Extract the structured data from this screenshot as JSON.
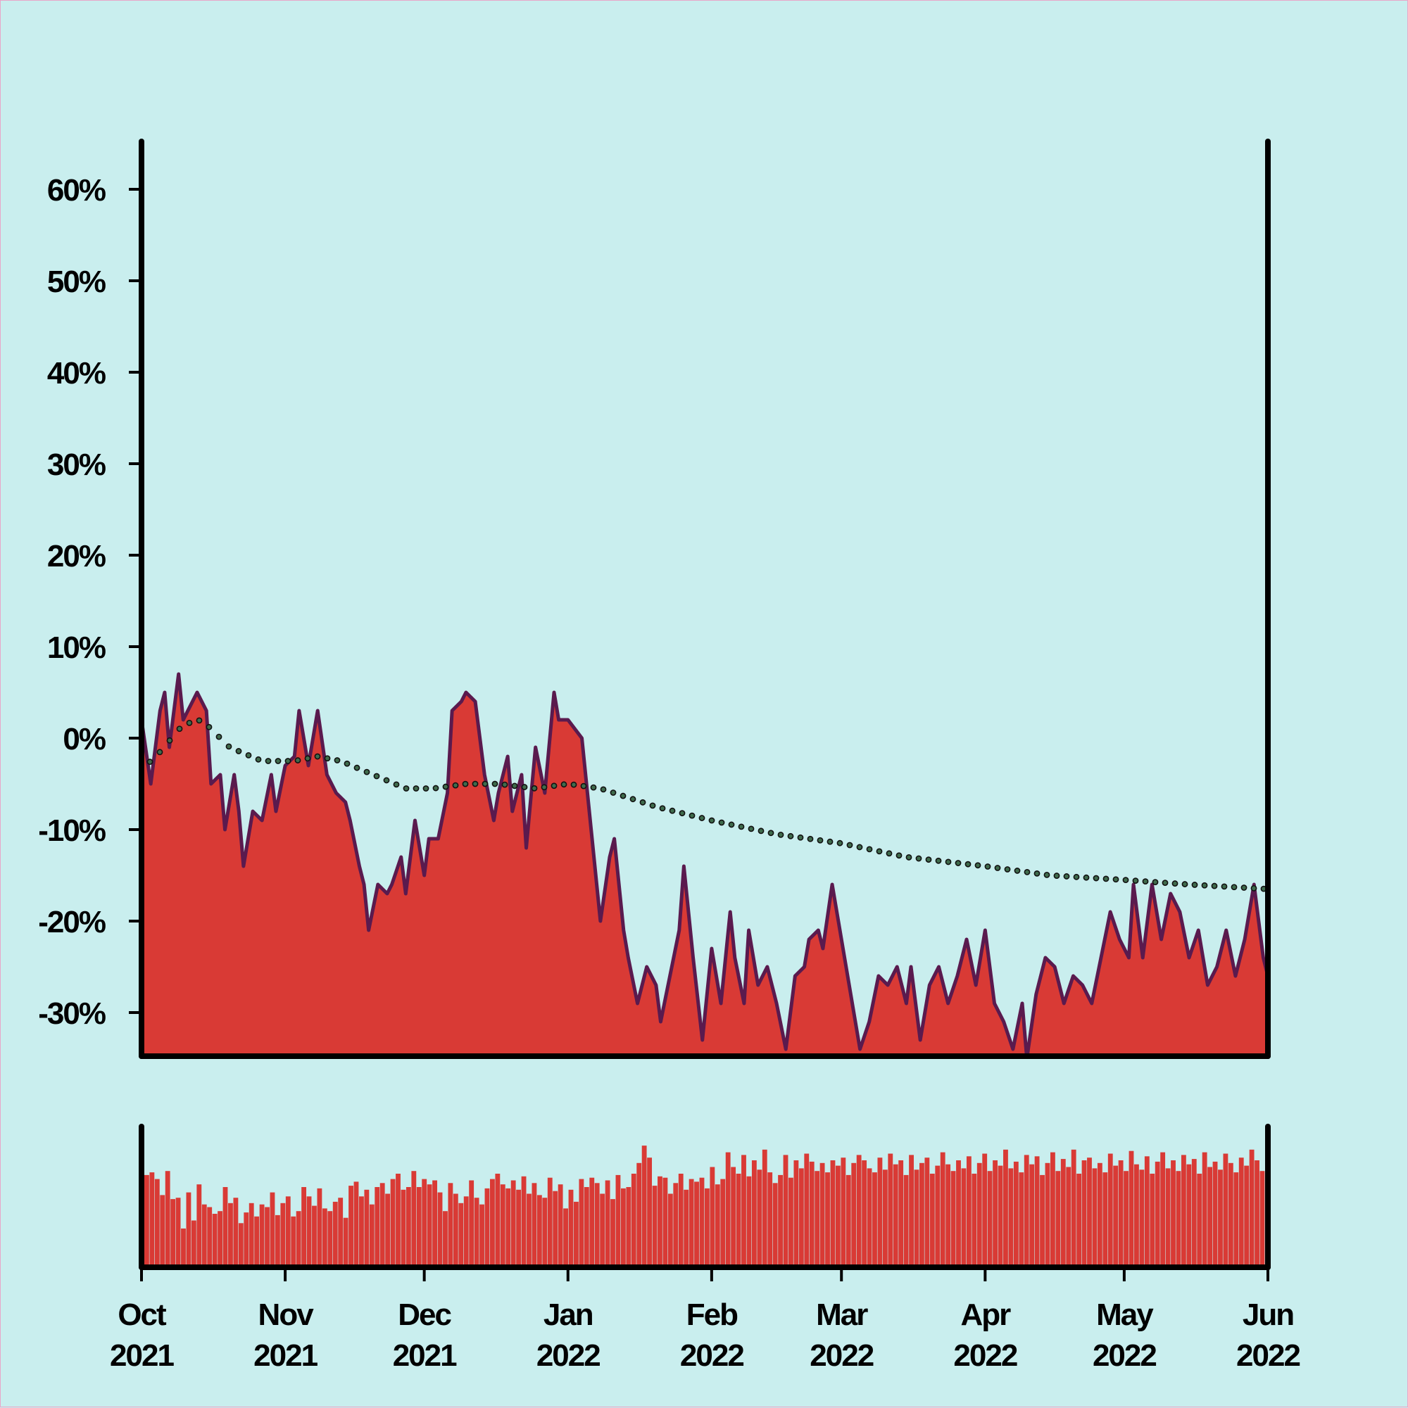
{
  "chart_data": [
    {
      "type": "area",
      "title": "",
      "xlabel": "",
      "ylabel": "",
      "ylim": [
        -34,
        66
      ],
      "y_ticks": [
        "60%",
        "50%",
        "40%",
        "30%",
        "20%",
        "10%",
        "0%",
        "-10%",
        "-20%",
        "-30%"
      ],
      "y_tick_values": [
        60,
        50,
        40,
        30,
        20,
        10,
        0,
        -10,
        -20,
        -30
      ],
      "x_range": [
        "2021-10-01",
        "2022-06-01"
      ],
      "x_ticks": [
        {
          "date": "2021-10-01",
          "month": "Oct",
          "year": "2021"
        },
        {
          "date": "2021-11-01",
          "month": "Nov",
          "year": "2021"
        },
        {
          "date": "2021-12-01",
          "month": "Dec",
          "year": "2021"
        },
        {
          "date": "2022-01-01",
          "month": "Jan",
          "year": "2022"
        },
        {
          "date": "2022-02-01",
          "month": "Feb",
          "year": "2022"
        },
        {
          "date": "2022-03-01",
          "month": "Mar",
          "year": "2022"
        },
        {
          "date": "2022-04-01",
          "month": "Apr",
          "year": "2022"
        },
        {
          "date": "2022-05-01",
          "month": "May",
          "year": "2022"
        },
        {
          "date": "2022-06-01",
          "month": "Jun",
          "year": "2022"
        }
      ],
      "series": [
        {
          "role": "area-line",
          "color": "#d93a35",
          "line_color": "#5a1a4e",
          "points": [
            [
              "2021-10-01",
              2
            ],
            [
              "2021-10-03",
              -5
            ],
            [
              "2021-10-05",
              3
            ],
            [
              "2021-10-06",
              5
            ],
            [
              "2021-10-07",
              -1
            ],
            [
              "2021-10-09",
              7
            ],
            [
              "2021-10-10",
              2
            ],
            [
              "2021-10-12",
              4
            ],
            [
              "2021-10-13",
              5
            ],
            [
              "2021-10-15",
              3
            ],
            [
              "2021-10-16",
              -5
            ],
            [
              "2021-10-18",
              -4
            ],
            [
              "2021-10-19",
              -10
            ],
            [
              "2021-10-21",
              -4
            ],
            [
              "2021-10-22",
              -8
            ],
            [
              "2021-10-23",
              -14
            ],
            [
              "2021-10-25",
              -8
            ],
            [
              "2021-10-27",
              -9
            ],
            [
              "2021-10-29",
              -4
            ],
            [
              "2021-10-30",
              -8
            ],
            [
              "2021-11-01",
              -3
            ],
            [
              "2021-11-03",
              -2
            ],
            [
              "2021-11-04",
              3
            ],
            [
              "2021-11-06",
              -3
            ],
            [
              "2021-11-07",
              0
            ],
            [
              "2021-11-08",
              3
            ],
            [
              "2021-11-10",
              -4
            ],
            [
              "2021-11-12",
              -6
            ],
            [
              "2021-11-14",
              -7
            ],
            [
              "2021-11-15",
              -9
            ],
            [
              "2021-11-17",
              -14
            ],
            [
              "2021-11-18",
              -16
            ],
            [
              "2021-11-19",
              -21
            ],
            [
              "2021-11-21",
              -16
            ],
            [
              "2021-11-23",
              -17
            ],
            [
              "2021-11-24",
              -16
            ],
            [
              "2021-11-26",
              -13
            ],
            [
              "2021-11-27",
              -17
            ],
            [
              "2021-11-29",
              -9
            ],
            [
              "2021-12-01",
              -15
            ],
            [
              "2021-12-02",
              -11
            ],
            [
              "2021-12-04",
              -11
            ],
            [
              "2021-12-06",
              -6
            ],
            [
              "2021-12-07",
              3
            ],
            [
              "2021-12-09",
              4
            ],
            [
              "2021-12-10",
              5
            ],
            [
              "2021-12-12",
              4
            ],
            [
              "2021-12-14",
              -4
            ],
            [
              "2021-12-16",
              -9
            ],
            [
              "2021-12-17",
              -6
            ],
            [
              "2021-12-19",
              -2
            ],
            [
              "2021-12-20",
              -8
            ],
            [
              "2021-12-22",
              -4
            ],
            [
              "2021-12-23",
              -12
            ],
            [
              "2021-12-25",
              -1
            ],
            [
              "2021-12-27",
              -6
            ],
            [
              "2021-12-29",
              5
            ],
            [
              "2021-12-30",
              2
            ],
            [
              "2022-01-01",
              2
            ],
            [
              "2022-01-04",
              0
            ],
            [
              "2022-01-06",
              -10
            ],
            [
              "2022-01-08",
              -20
            ],
            [
              "2022-01-10",
              -13
            ],
            [
              "2022-01-11",
              -11
            ],
            [
              "2022-01-13",
              -21
            ],
            [
              "2022-01-14",
              -24
            ],
            [
              "2022-01-16",
              -29
            ],
            [
              "2022-01-18",
              -25
            ],
            [
              "2022-01-20",
              -27
            ],
            [
              "2022-01-21",
              -31
            ],
            [
              "2022-01-23",
              -26
            ],
            [
              "2022-01-25",
              -21
            ],
            [
              "2022-01-26",
              -14
            ],
            [
              "2022-01-28",
              -24
            ],
            [
              "2022-01-30",
              -33
            ],
            [
              "2022-02-01",
              -23
            ],
            [
              "2022-02-03",
              -29
            ],
            [
              "2022-02-05",
              -19
            ],
            [
              "2022-02-06",
              -24
            ],
            [
              "2022-02-08",
              -29
            ],
            [
              "2022-02-09",
              -21
            ],
            [
              "2022-02-11",
              -27
            ],
            [
              "2022-02-13",
              -25
            ],
            [
              "2022-02-15",
              -29
            ],
            [
              "2022-02-17",
              -34
            ],
            [
              "2022-02-19",
              -26
            ],
            [
              "2022-02-21",
              -25
            ],
            [
              "2022-02-22",
              -22
            ],
            [
              "2022-02-24",
              -21
            ],
            [
              "2022-02-25",
              -23
            ],
            [
              "2022-02-27",
              -16
            ],
            [
              "2022-03-01",
              -22
            ],
            [
              "2022-03-03",
              -28
            ],
            [
              "2022-03-05",
              -34
            ],
            [
              "2022-03-07",
              -31
            ],
            [
              "2022-03-09",
              -26
            ],
            [
              "2022-03-11",
              -27
            ],
            [
              "2022-03-13",
              -25
            ],
            [
              "2022-03-15",
              -29
            ],
            [
              "2022-03-16",
              -25
            ],
            [
              "2022-03-18",
              -33
            ],
            [
              "2022-03-20",
              -27
            ],
            [
              "2022-03-22",
              -25
            ],
            [
              "2022-03-24",
              -29
            ],
            [
              "2022-03-26",
              -26
            ],
            [
              "2022-03-28",
              -22
            ],
            [
              "2022-03-30",
              -27
            ],
            [
              "2022-04-01",
              -21
            ],
            [
              "2022-04-03",
              -29
            ],
            [
              "2022-04-05",
              -31
            ],
            [
              "2022-04-07",
              -34
            ],
            [
              "2022-04-09",
              -29
            ],
            [
              "2022-04-10",
              -35
            ],
            [
              "2022-04-12",
              -28
            ],
            [
              "2022-04-14",
              -24
            ],
            [
              "2022-04-16",
              -25
            ],
            [
              "2022-04-18",
              -29
            ],
            [
              "2022-04-20",
              -26
            ],
            [
              "2022-04-22",
              -27
            ],
            [
              "2022-04-24",
              -29
            ],
            [
              "2022-04-26",
              -24
            ],
            [
              "2022-04-28",
              -19
            ],
            [
              "2022-04-30",
              -22
            ],
            [
              "2022-05-02",
              -24
            ],
            [
              "2022-05-03",
              -16
            ],
            [
              "2022-05-05",
              -24
            ],
            [
              "2022-05-07",
              -16
            ],
            [
              "2022-05-09",
              -22
            ],
            [
              "2022-05-11",
              -17
            ],
            [
              "2022-05-13",
              -19
            ],
            [
              "2022-05-15",
              -24
            ],
            [
              "2022-05-17",
              -21
            ],
            [
              "2022-05-19",
              -27
            ],
            [
              "2022-05-21",
              -25
            ],
            [
              "2022-05-23",
              -21
            ],
            [
              "2022-05-25",
              -26
            ],
            [
              "2022-05-27",
              -22
            ],
            [
              "2022-05-29",
              -16
            ],
            [
              "2022-05-31",
              -24
            ],
            [
              "2022-06-01",
              -26
            ]
          ]
        },
        {
          "role": "trend",
          "style": "dotted",
          "color": "#3f6b4c",
          "points": [
            [
              "2021-10-01",
              -3.5
            ],
            [
              "2021-10-05",
              -1.5
            ],
            [
              "2021-10-10",
              1.5
            ],
            [
              "2021-10-14",
              2
            ],
            [
              "2021-10-20",
              -1
            ],
            [
              "2021-10-27",
              -2.5
            ],
            [
              "2021-11-03",
              -2.5
            ],
            [
              "2021-11-08",
              -2
            ],
            [
              "2021-11-13",
              -2.5
            ],
            [
              "2021-11-20",
              -4
            ],
            [
              "2021-11-27",
              -5.5
            ],
            [
              "2021-12-03",
              -5.5
            ],
            [
              "2021-12-10",
              -5
            ],
            [
              "2021-12-17",
              -5
            ],
            [
              "2021-12-25",
              -5.5
            ],
            [
              "2022-01-01",
              -5
            ],
            [
              "2022-01-08",
              -5.5
            ],
            [
              "2022-01-20",
              -7.5
            ],
            [
              "2022-02-01",
              -9
            ],
            [
              "2022-02-15",
              -10.5
            ],
            [
              "2022-03-01",
              -11.5
            ],
            [
              "2022-03-15",
              -13
            ],
            [
              "2022-04-01",
              -14
            ],
            [
              "2022-04-15",
              -15
            ],
            [
              "2022-05-01",
              -15.5
            ],
            [
              "2022-05-15",
              -16
            ],
            [
              "2022-06-01",
              -16.5
            ]
          ]
        }
      ]
    },
    {
      "type": "bar",
      "title": "",
      "description_color": "#d93a35",
      "x_range": [
        "2021-10-01",
        "2022-06-01"
      ],
      "ylim": [
        0,
        1
      ],
      "values": [
        0.69,
        0.71,
        0.66,
        0.54,
        0.72,
        0.51,
        0.52,
        0.29,
        0.56,
        0.35,
        0.62,
        0.47,
        0.45,
        0.4,
        0.42,
        0.6,
        0.48,
        0.52,
        0.33,
        0.41,
        0.48,
        0.38,
        0.47,
        0.45,
        0.56,
        0.39,
        0.48,
        0.53,
        0.38,
        0.42,
        0.6,
        0.53,
        0.46,
        0.59,
        0.44,
        0.42,
        0.49,
        0.52,
        0.37,
        0.61,
        0.64,
        0.53,
        0.58,
        0.47,
        0.6,
        0.63,
        0.55,
        0.66,
        0.7,
        0.58,
        0.6,
        0.72,
        0.6,
        0.66,
        0.62,
        0.65,
        0.56,
        0.42,
        0.63,
        0.55,
        0.48,
        0.53,
        0.65,
        0.52,
        0.47,
        0.59,
        0.66,
        0.7,
        0.62,
        0.59,
        0.65,
        0.58,
        0.68,
        0.55,
        0.63,
        0.54,
        0.52,
        0.67,
        0.57,
        0.62,
        0.44,
        0.58,
        0.49,
        0.66,
        0.6,
        0.67,
        0.63,
        0.55,
        0.65,
        0.51,
        0.69,
        0.59,
        0.6,
        0.7,
        0.78,
        0.91,
        0.82,
        0.61,
        0.68,
        0.67,
        0.55,
        0.63,
        0.7,
        0.58,
        0.66,
        0.64,
        0.67,
        0.59,
        0.75,
        0.62,
        0.66,
        0.86,
        0.75,
        0.7,
        0.84,
        0.68,
        0.8,
        0.73,
        0.88,
        0.71,
        0.63,
        0.69,
        0.84,
        0.67,
        0.8,
        0.74,
        0.85,
        0.79,
        0.72,
        0.78,
        0.71,
        0.8,
        0.76,
        0.82,
        0.69,
        0.78,
        0.84,
        0.8,
        0.74,
        0.71,
        0.82,
        0.73,
        0.85,
        0.77,
        0.8,
        0.69,
        0.84,
        0.73,
        0.78,
        0.82,
        0.7,
        0.76,
        0.86,
        0.77,
        0.72,
        0.8,
        0.74,
        0.83,
        0.7,
        0.78,
        0.85,
        0.72,
        0.8,
        0.76,
        0.88,
        0.74,
        0.79,
        0.71,
        0.84,
        0.77,
        0.83,
        0.69,
        0.78,
        0.86,
        0.72,
        0.81,
        0.75,
        0.88,
        0.7,
        0.8,
        0.82,
        0.74,
        0.78,
        0.71,
        0.85,
        0.76,
        0.8,
        0.72,
        0.87,
        0.77,
        0.73,
        0.83,
        0.7,
        0.79,
        0.86,
        0.74,
        0.8,
        0.72,
        0.84,
        0.77,
        0.81,
        0.7,
        0.86,
        0.75,
        0.79,
        0.73,
        0.85,
        0.78,
        0.71,
        0.82,
        0.76,
        0.88,
        0.8,
        0.72
      ]
    }
  ]
}
